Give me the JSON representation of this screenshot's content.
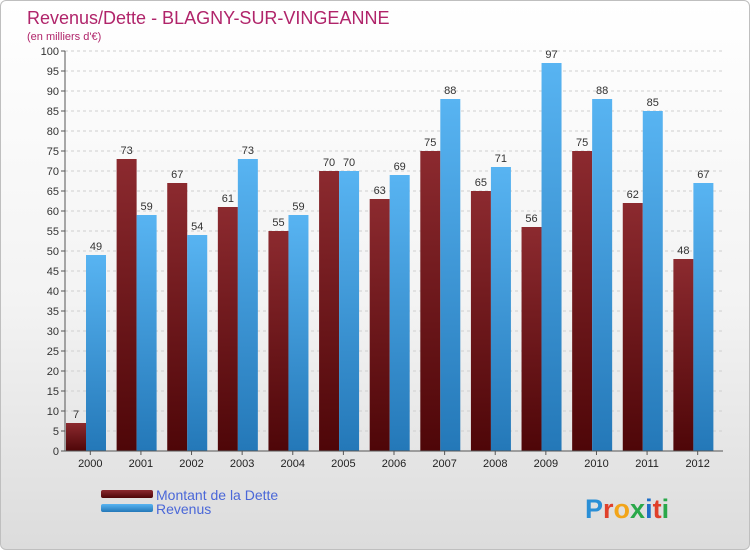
{
  "chart_data": {
    "type": "bar",
    "title": "Revenus/Dette - BLAGNY-SUR-VINGEANNE",
    "subtitle": "(en milliers d'€)",
    "categories": [
      "2000",
      "2001",
      "2002",
      "2003",
      "2004",
      "2005",
      "2006",
      "2007",
      "2008",
      "2009",
      "2010",
      "2011",
      "2012"
    ],
    "series": [
      {
        "name": "Montant de la Dette",
        "color": "#6e0f12",
        "values": [
          7,
          73,
          67,
          61,
          55,
          70,
          63,
          75,
          65,
          56,
          75,
          62,
          48
        ]
      },
      {
        "name": "Revenus",
        "color": "#3a9be0",
        "values": [
          49,
          59,
          54,
          73,
          59,
          70,
          69,
          88,
          71,
          97,
          88,
          85,
          67
        ]
      }
    ],
    "yticks": [
      0,
      5,
      10,
      15,
      20,
      25,
      30,
      35,
      40,
      45,
      50,
      55,
      60,
      65,
      70,
      75,
      80,
      85,
      90,
      95,
      100
    ],
    "ylim": [
      0,
      100
    ],
    "grid": true,
    "legend": "bottom-left"
  },
  "logo": {
    "letters": [
      "P",
      "r",
      "o",
      "x",
      "i",
      "t",
      "i"
    ],
    "colors": [
      "#2a8fd6",
      "#e0402a",
      "#f2a51a",
      "#2aa84a",
      "#1f6fc8",
      "#e0402a",
      "#2aa84a"
    ]
  }
}
